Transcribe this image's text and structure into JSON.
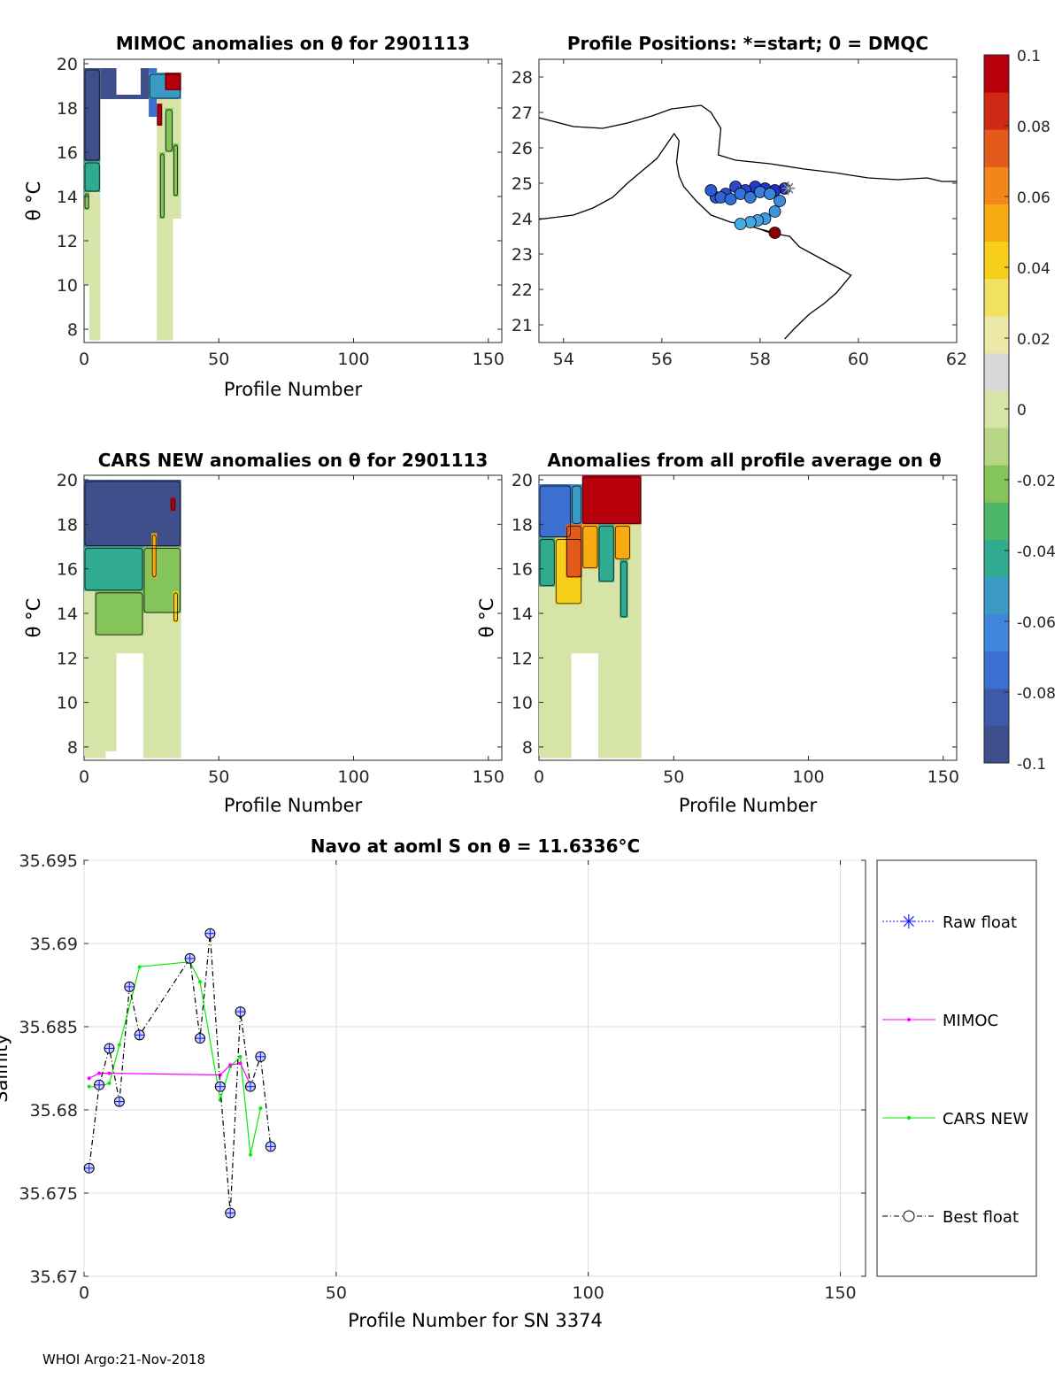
{
  "footer": "WHOI Argo:21-Nov-2018",
  "colors": {
    "colormap": [
      "#3e4f8c",
      "#3d5aa8",
      "#3b6fd0",
      "#3f86dc",
      "#3a9ac4",
      "#30ab8f",
      "#4db56a",
      "#85c45a",
      "#b7d585",
      "#d6e4a8",
      "#d8d8d8",
      "#ece8a8",
      "#f2e060",
      "#f7cf1a",
      "#f7ab10",
      "#f38618",
      "#e35a1a",
      "#d02a16",
      "#b8000d"
    ],
    "raw_float": "#1010ff",
    "mimoc": "#ff00ff",
    "cars_new": "#00ee00",
    "best_float": "#000000",
    "track_start": "#ffffff",
    "track_end": "#8b0000"
  },
  "chart_data": [
    {
      "id": "mimoc",
      "type": "heatmap",
      "title": "MIMOC anomalies on θ  for 2901113",
      "xlabel": "Profile Number",
      "ylabel": "θ °C",
      "xlim": [
        0,
        155
      ],
      "ylim": [
        7.4,
        20.2
      ],
      "xticks": [
        0,
        50,
        100,
        150
      ],
      "yticks": [
        8,
        10,
        12,
        14,
        16,
        18,
        20
      ],
      "blocks": [
        {
          "x0": 0,
          "x1": 2,
          "y0": 10,
          "y1": 19.2,
          "level": 0
        },
        {
          "x0": 2,
          "x1": 4,
          "y0": 7.5,
          "y1": 19.8,
          "level": 0
        },
        {
          "x0": 4,
          "x1": 6,
          "y0": 7.5,
          "y1": 19.8,
          "level": 0
        },
        {
          "x0": 6,
          "x1": 12,
          "y0": 18.4,
          "y1": 19.8,
          "level": -0.1
        },
        {
          "x0": 12,
          "x1": 21,
          "y0": 18.4,
          "y1": 18.6,
          "level": -0.1
        },
        {
          "x0": 21,
          "x1": 24,
          "y0": 18.4,
          "y1": 19.8,
          "level": -0.1
        },
        {
          "x0": 24,
          "x1": 27,
          "y0": 17.6,
          "y1": 19.8,
          "level": -0.08
        },
        {
          "x0": 27,
          "x1": 30,
          "y0": 7.5,
          "y1": 19.6,
          "level": 0
        },
        {
          "x0": 30,
          "x1": 33,
          "y0": 7.5,
          "y1": 19.6,
          "level": 0
        },
        {
          "x0": 33,
          "x1": 36,
          "y0": 13,
          "y1": 19.6,
          "level": 0
        }
      ],
      "patches": [
        {
          "x0": 0,
          "x1": 6,
          "y0": 15.6,
          "y1": 19.8,
          "level": -0.1
        },
        {
          "x0": 0,
          "x1": 6,
          "y0": 14.2,
          "y1": 15.6,
          "level": -0.04
        },
        {
          "x0": 0,
          "x1": 2,
          "y0": 13.4,
          "y1": 14.2,
          "level": -0.02
        },
        {
          "x0": 24,
          "x1": 36,
          "y0": 18.4,
          "y1": 19.6,
          "level": -0.06
        },
        {
          "x0": 30,
          "x1": 36,
          "y0": 18.8,
          "y1": 19.6,
          "level": 0.1
        },
        {
          "x0": 27,
          "x1": 29,
          "y0": 17.2,
          "y1": 18.2,
          "level": 0.1
        },
        {
          "x0": 30,
          "x1": 33,
          "y0": 16,
          "y1": 18,
          "level": -0.02
        },
        {
          "x0": 28,
          "x1": 30,
          "y0": 13,
          "y1": 16,
          "level": -0.02
        },
        {
          "x0": 33,
          "x1": 35,
          "y0": 14,
          "y1": 16.4,
          "level": -0.02
        }
      ]
    },
    {
      "id": "cars",
      "type": "heatmap",
      "title": "CARS NEW anomalies on θ for 2901113",
      "xlabel": "Profile Number",
      "ylabel": "θ °C",
      "xlim": [
        0,
        155
      ],
      "ylim": [
        7.4,
        20.2
      ],
      "xticks": [
        0,
        50,
        100,
        150
      ],
      "yticks": [
        8,
        10,
        12,
        14,
        16,
        18,
        20
      ],
      "blocks": [
        {
          "x0": 0,
          "x1": 8,
          "y0": 7.5,
          "y1": 19.6,
          "level": 0
        },
        {
          "x0": 8,
          "x1": 12,
          "y0": 7.8,
          "y1": 20,
          "level": 0
        },
        {
          "x0": 12,
          "x1": 22,
          "y0": 12.2,
          "y1": 19,
          "level": 0
        },
        {
          "x0": 22,
          "x1": 27,
          "y0": 7.5,
          "y1": 20,
          "level": 0
        },
        {
          "x0": 27,
          "x1": 36,
          "y0": 7.5,
          "y1": 19.6,
          "level": 0
        }
      ],
      "patches": [
        {
          "x0": 0,
          "x1": 36,
          "y0": 17,
          "y1": 20,
          "level": -0.1
        },
        {
          "x0": 0,
          "x1": 22,
          "y0": 15,
          "y1": 17,
          "level": -0.04
        },
        {
          "x0": 4,
          "x1": 22,
          "y0": 13,
          "y1": 15,
          "level": -0.02
        },
        {
          "x0": 22,
          "x1": 36,
          "y0": 14,
          "y1": 17,
          "level": -0.02
        },
        {
          "x0": 25,
          "x1": 27,
          "y0": 15.6,
          "y1": 17.6,
          "level": 0.06
        },
        {
          "x0": 33,
          "x1": 35,
          "y0": 13.6,
          "y1": 15,
          "level": 0.04
        },
        {
          "x0": 32,
          "x1": 34,
          "y0": 18.6,
          "y1": 19.2,
          "level": 0.1
        }
      ]
    },
    {
      "id": "avg",
      "type": "heatmap",
      "title": "Anomalies from all profile average on θ",
      "xlabel": "Profile Number",
      "ylabel": "θ °C",
      "xlim": [
        0,
        155
      ],
      "ylim": [
        7.4,
        20.2
      ],
      "xticks": [
        0,
        50,
        100,
        150
      ],
      "yticks": [
        8,
        10,
        12,
        14,
        16,
        18,
        20
      ],
      "blocks": [
        {
          "x0": 0,
          "x1": 12,
          "y0": 7.5,
          "y1": 19.8,
          "level": 0
        },
        {
          "x0": 12,
          "x1": 22,
          "y0": 12.2,
          "y1": 19.8,
          "level": 0
        },
        {
          "x0": 22,
          "x1": 38,
          "y0": 7.5,
          "y1": 20.2,
          "level": 0
        }
      ],
      "patches": [
        {
          "x0": 0,
          "x1": 12,
          "y0": 17.4,
          "y1": 19.8,
          "level": -0.08
        },
        {
          "x0": 12,
          "x1": 16,
          "y0": 18,
          "y1": 19.8,
          "level": -0.06
        },
        {
          "x0": 0,
          "x1": 6,
          "y0": 15.2,
          "y1": 17.4,
          "level": -0.04
        },
        {
          "x0": 6,
          "x1": 16,
          "y0": 14.4,
          "y1": 17.4,
          "level": 0.04
        },
        {
          "x0": 10,
          "x1": 16,
          "y0": 15.6,
          "y1": 18,
          "level": 0.08
        },
        {
          "x0": 16,
          "x1": 38,
          "y0": 18,
          "y1": 20.2,
          "level": 0.1
        },
        {
          "x0": 16,
          "x1": 22,
          "y0": 16,
          "y1": 18,
          "level": 0.06
        },
        {
          "x0": 22,
          "x1": 28,
          "y0": 15.4,
          "y1": 18,
          "level": -0.04
        },
        {
          "x0": 28,
          "x1": 34,
          "y0": 16.4,
          "y1": 18,
          "level": 0.06
        },
        {
          "x0": 30,
          "x1": 33,
          "y0": 13.8,
          "y1": 16.4,
          "level": -0.04
        }
      ]
    },
    {
      "id": "map",
      "type": "scatter",
      "title": "Profile Positions: *=start; 0 = DMQC",
      "xlim": [
        53.5,
        62
      ],
      "ylim": [
        20.5,
        28.5
      ],
      "xticks": [
        54,
        56,
        58,
        60,
        62
      ],
      "yticks": [
        21,
        22,
        23,
        24,
        25,
        26,
        27,
        28
      ],
      "coast_main": [
        [
          53.5,
          23.98
        ],
        [
          54.2,
          24.1
        ],
        [
          54.6,
          24.3
        ],
        [
          55.0,
          24.6
        ],
        [
          55.3,
          25.0
        ],
        [
          55.6,
          25.35
        ],
        [
          55.9,
          25.7
        ],
        [
          56.1,
          26.1
        ],
        [
          56.25,
          26.4
        ],
        [
          56.35,
          26.2
        ],
        [
          56.3,
          25.6
        ],
        [
          56.35,
          25.2
        ],
        [
          56.45,
          24.9
        ],
        [
          56.7,
          24.5
        ],
        [
          57.0,
          24.1
        ],
        [
          57.4,
          23.9
        ],
        [
          57.8,
          23.8
        ],
        [
          58.2,
          23.6
        ],
        [
          58.6,
          23.5
        ],
        [
          58.8,
          23.2
        ],
        [
          59.2,
          22.9
        ],
        [
          59.6,
          22.6
        ],
        [
          59.85,
          22.4
        ],
        [
          59.55,
          21.9
        ],
        [
          59.3,
          21.6
        ],
        [
          59.0,
          21.3
        ],
        [
          58.7,
          20.9
        ],
        [
          58.5,
          20.6
        ]
      ],
      "coast_north": [
        [
          53.5,
          26.85
        ],
        [
          54.2,
          26.6
        ],
        [
          54.8,
          26.55
        ],
        [
          55.3,
          26.7
        ],
        [
          55.8,
          26.9
        ],
        [
          56.2,
          27.1
        ],
        [
          56.5,
          27.15
        ],
        [
          56.8,
          27.2
        ],
        [
          57.0,
          27.0
        ],
        [
          57.2,
          26.55
        ],
        [
          57.15,
          25.8
        ],
        [
          57.5,
          25.65
        ],
        [
          58.2,
          25.55
        ],
        [
          58.9,
          25.4
        ],
        [
          59.5,
          25.3
        ],
        [
          60.2,
          25.15
        ],
        [
          60.8,
          25.1
        ],
        [
          61.4,
          25.15
        ],
        [
          61.7,
          25.05
        ],
        [
          62,
          25.05
        ]
      ],
      "track": [
        [
          58.5,
          24.85
        ],
        [
          58.3,
          24.8
        ],
        [
          58.1,
          24.85
        ],
        [
          57.9,
          24.9
        ],
        [
          57.7,
          24.8
        ],
        [
          57.5,
          24.9
        ],
        [
          57.3,
          24.7
        ],
        [
          57.1,
          24.6
        ],
        [
          57.0,
          24.8
        ],
        [
          57.2,
          24.6
        ],
        [
          57.4,
          24.55
        ],
        [
          57.6,
          24.7
        ],
        [
          57.8,
          24.6
        ],
        [
          58.0,
          24.75
        ],
        [
          58.2,
          24.7
        ],
        [
          58.4,
          24.5
        ],
        [
          58.3,
          24.2
        ],
        [
          58.1,
          24.0
        ],
        [
          57.95,
          23.95
        ],
        [
          57.8,
          23.9
        ],
        [
          57.6,
          23.85
        ],
        [
          58.3,
          23.6
        ]
      ]
    },
    {
      "id": "salinity",
      "type": "line",
      "title": "Navo at aoml S on θ = 11.6336°C",
      "xlabel": "Profile Number for SN 3374",
      "ylabel": "Salinity",
      "xlim": [
        0,
        155
      ],
      "ylim": [
        35.67,
        35.695
      ],
      "xticks": [
        0,
        50,
        100,
        150
      ],
      "yticks": [
        35.67,
        35.675,
        35.68,
        35.685,
        35.69,
        35.695
      ],
      "legend": [
        "Raw float",
        "MIMOC",
        "CARS NEW",
        "Best float"
      ],
      "series": [
        {
          "name": "Best float",
          "x": [
            1,
            3,
            5,
            7,
            9,
            11,
            21,
            23,
            25,
            27,
            29,
            31,
            33,
            35,
            37
          ],
          "y": [
            35.6765,
            35.6815,
            35.6837,
            35.6805,
            35.6874,
            35.6845,
            35.6891,
            35.6843,
            35.6906,
            35.6814,
            35.6738,
            35.6859,
            35.6814,
            35.6832,
            35.6778
          ]
        },
        {
          "name": "MIMOC",
          "x": [
            1,
            3,
            5,
            27,
            29,
            31,
            33
          ],
          "y": [
            35.6819,
            35.6822,
            35.6822,
            35.6821,
            35.6827,
            35.6828,
            35.6815
          ]
        },
        {
          "name": "CARS NEW",
          "x": [
            1,
            3,
            5,
            7,
            11,
            21,
            23,
            27,
            29,
            31,
            33,
            35
          ],
          "y": [
            35.6814,
            35.6814,
            35.6816,
            35.6839,
            35.6886,
            35.6889,
            35.6877,
            35.6806,
            35.6826,
            35.6832,
            35.6773,
            35.6801
          ]
        }
      ]
    }
  ],
  "colorbar": {
    "ticks": [
      "0.1",
      "0.08",
      "0.06",
      "0.04",
      "0.02",
      "0",
      "-0.02",
      "-0.04",
      "-0.06",
      "-0.08",
      "-0.1"
    ],
    "range": [
      -0.1,
      0.1
    ]
  }
}
